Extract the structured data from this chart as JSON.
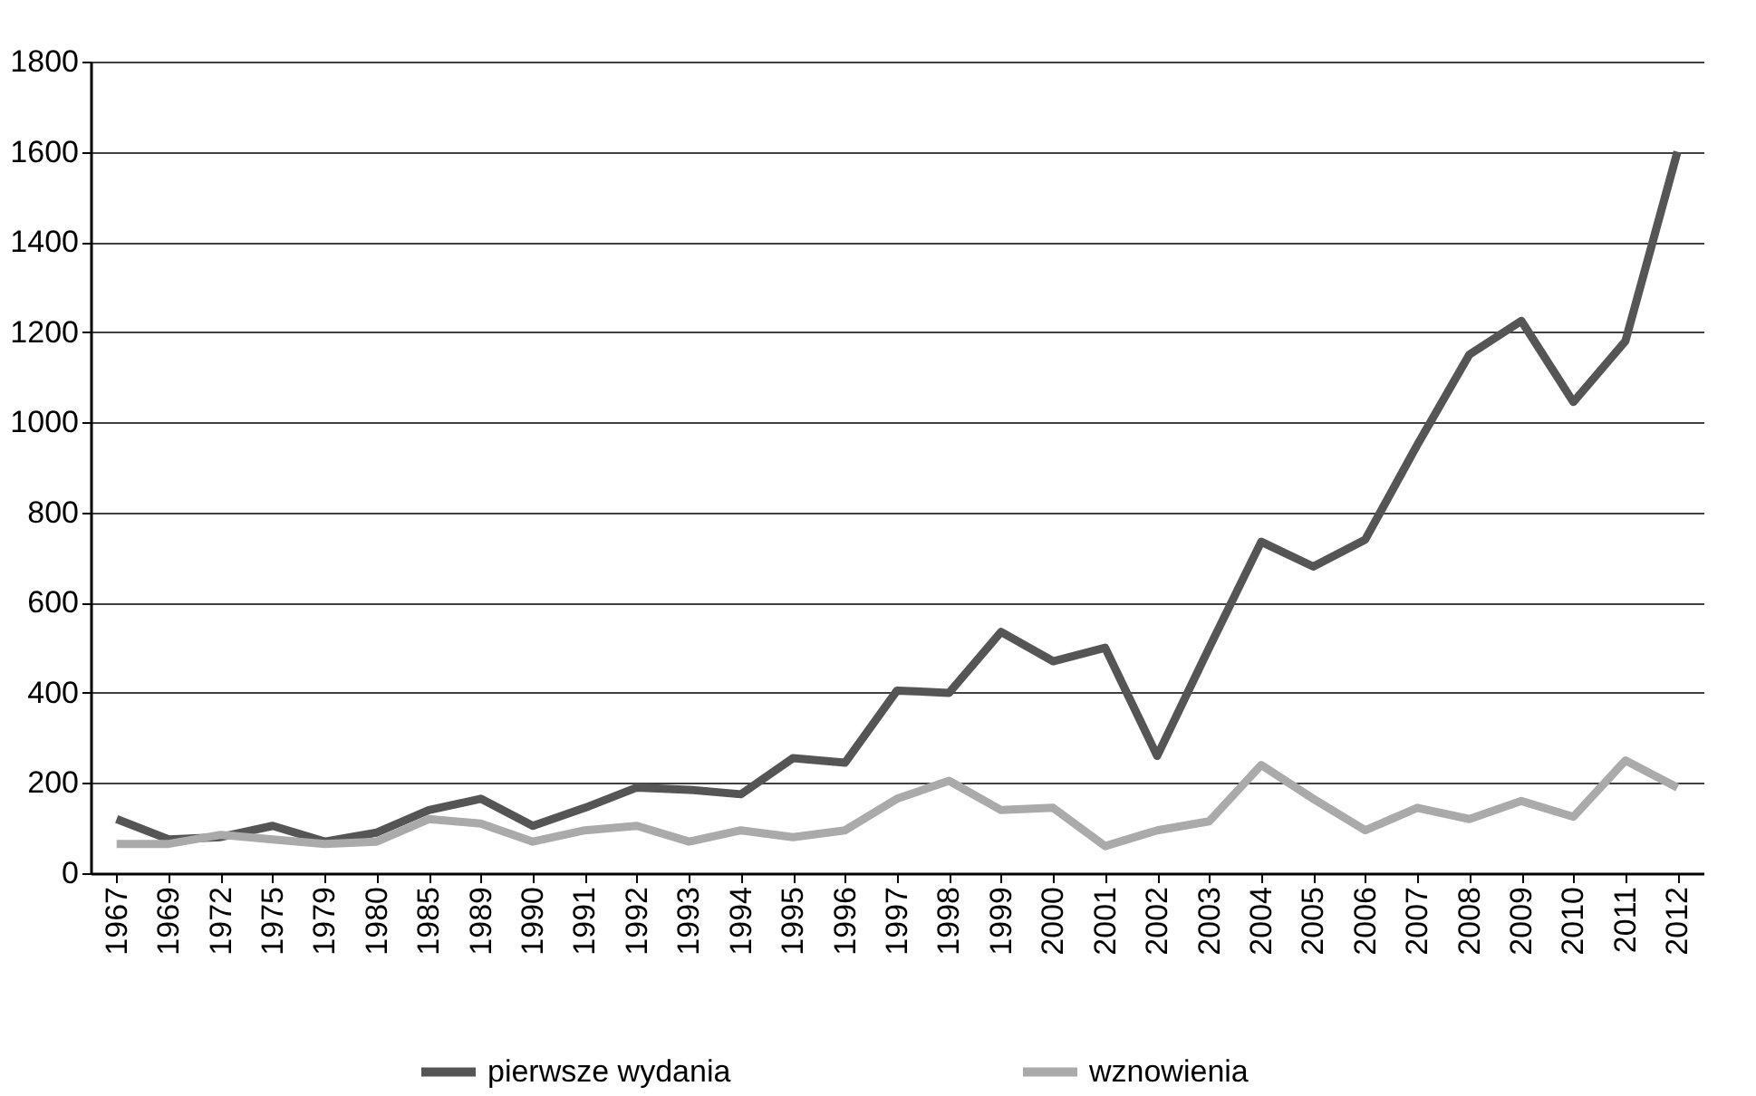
{
  "chart_data": {
    "type": "line",
    "categories": [
      "1967",
      "1969",
      "1972",
      "1975",
      "1979",
      "1980",
      "1985",
      "1989",
      "1990",
      "1991",
      "1992",
      "1993",
      "1994",
      "1995",
      "1996",
      "1997",
      "1998",
      "1999",
      "2000",
      "2001",
      "2002",
      "2003",
      "2004",
      "2005",
      "2006",
      "2007",
      "2008",
      "2009",
      "2010",
      "2011",
      "2012"
    ],
    "series": [
      {
        "name": "pierwsze wydania",
        "color": "#555555",
        "values": [
          120,
          75,
          80,
          105,
          70,
          90,
          140,
          165,
          105,
          145,
          190,
          185,
          175,
          255,
          245,
          405,
          400,
          535,
          470,
          500,
          260,
          500,
          735,
          680,
          740,
          950,
          1150,
          1225,
          1045,
          1180,
          1600
        ]
      },
      {
        "name": "wznowienia",
        "color": "#aaaaaa",
        "values": [
          65,
          65,
          85,
          75,
          65,
          70,
          120,
          110,
          70,
          95,
          105,
          70,
          95,
          80,
          95,
          165,
          205,
          140,
          145,
          60,
          95,
          115,
          240,
          165,
          95,
          145,
          120,
          160,
          125,
          250,
          190
        ]
      }
    ],
    "ylim": [
      0,
      1800
    ],
    "yticks": [
      0,
      200,
      400,
      600,
      800,
      1000,
      1200,
      1400,
      1600,
      1800
    ],
    "grid": "y",
    "legend": "bottom",
    "marker": "none",
    "line_style": "solid"
  }
}
